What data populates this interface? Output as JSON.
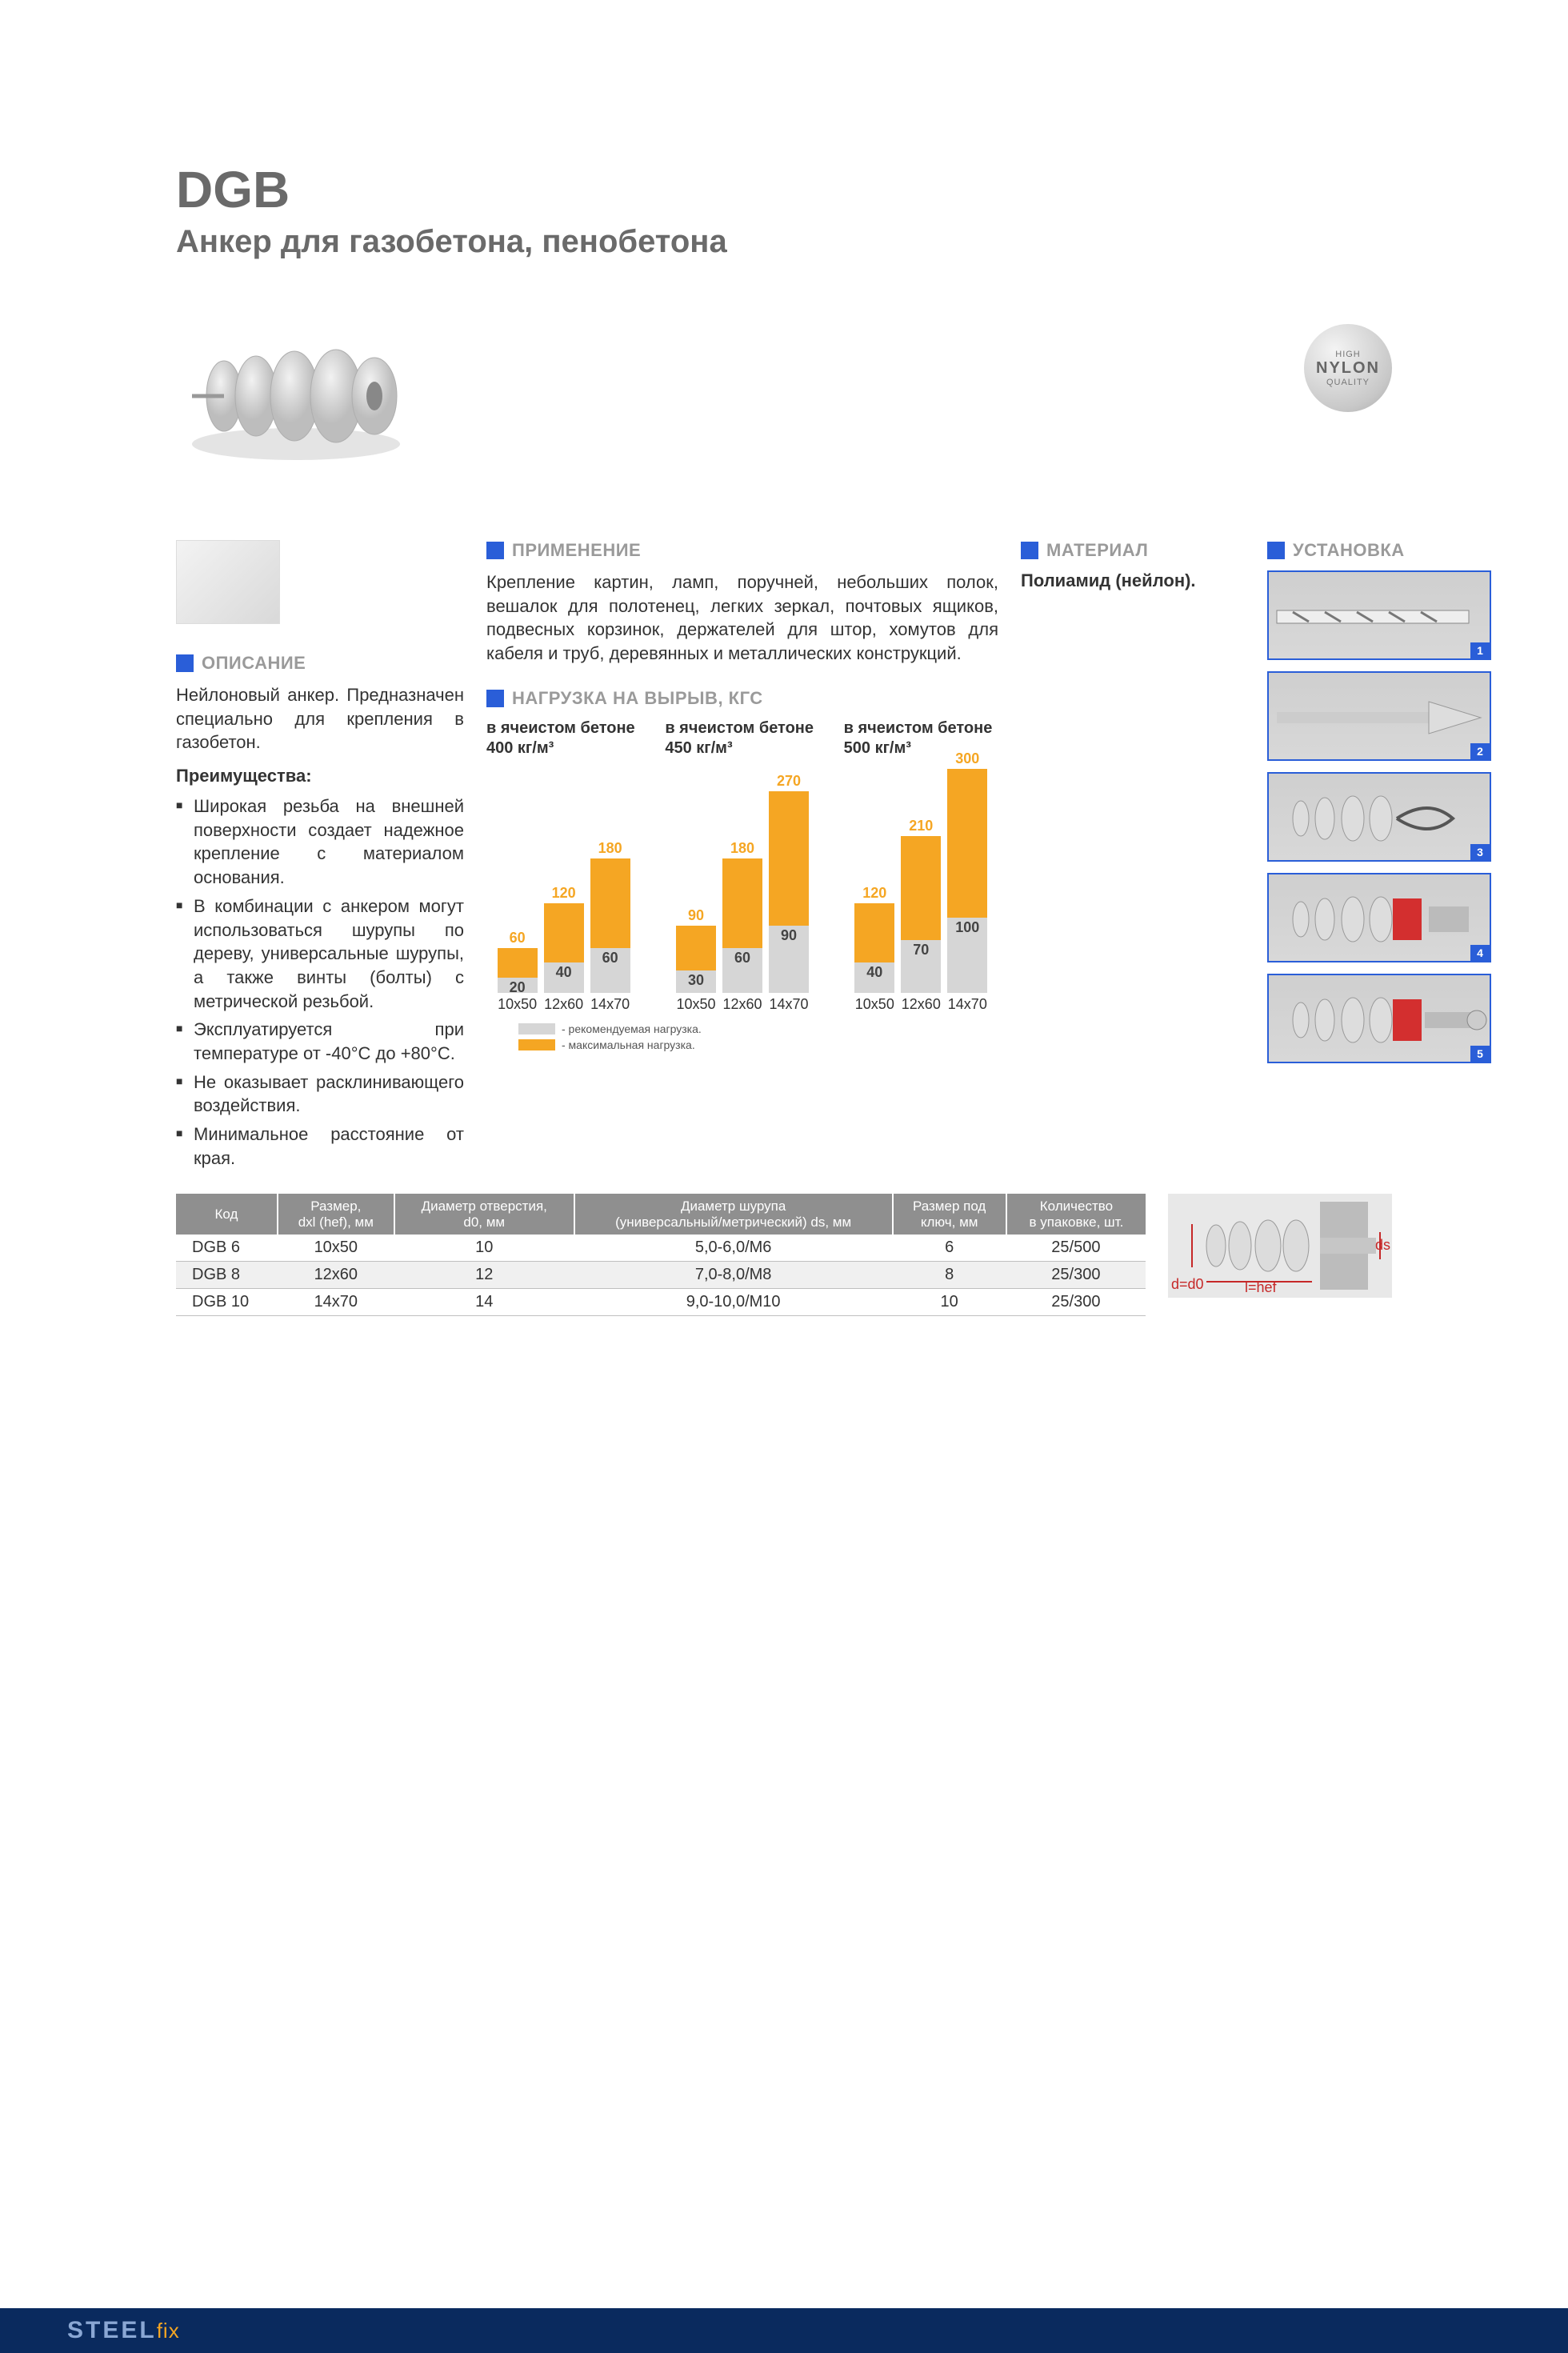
{
  "header": {
    "title": "DGB",
    "subtitle": "Анкер для газобетона, пенобетона"
  },
  "badge": {
    "top": "HIGH",
    "mid": "NYLON",
    "bot": "QUALITY"
  },
  "sections": {
    "desc_title": "ОПИСАНИЕ",
    "app_title": "ПРИМЕНЕНИЕ",
    "load_title": "НАГРУЗКА НА ВЫРЫВ, КГС",
    "mat_title": "МАТЕРИАЛ",
    "install_title": "УСТАНОВКА"
  },
  "description": {
    "intro": "Нейлоновый анкер. Предназначен специально для крепления в газобетон.",
    "adv_title": "Преимущества:",
    "adv": [
      "Широкая резьба на внешней поверхности создает надежное крепление с материалом основания.",
      "В комбинации с анкером могут использоваться шурупы по дереву, универсальные шурупы, а также винты (болты) с метрической резьбой.",
      "Эксплуатируется при температуре от -40°С до +80°С.",
      "Не оказывает расклинивающего воздействия.",
      "Минимальное расстояние от края."
    ]
  },
  "application": "Крепление картин, ламп, поручней, небольших полок, вешалок для полотенец, легких зеркал, почтовых ящиков, подвесных корзинок, держателей для штор, хомутов для кабеля и труб, деревянных и металлических конструкций.",
  "material": "Полиамид (нейлон).",
  "chart": {
    "ylim": 300,
    "colors": {
      "rec": "#d6d6d6",
      "max": "#f5a623"
    },
    "groups": [
      {
        "caption": "в ячеистом бетоне 400 кг/м³",
        "bars": [
          {
            "xl": "10x50",
            "rec": 20,
            "max": 60
          },
          {
            "xl": "12x60",
            "rec": 40,
            "max": 120
          },
          {
            "xl": "14x70",
            "rec": 60,
            "max": 180
          }
        ]
      },
      {
        "caption": "в ячеистом бетоне 450 кг/м³",
        "bars": [
          {
            "xl": "10x50",
            "rec": 30,
            "max": 90
          },
          {
            "xl": "12x60",
            "rec": 60,
            "max": 180
          },
          {
            "xl": "14x70",
            "rec": 90,
            "max": 270
          }
        ]
      },
      {
        "caption": "в ячеистом бетоне 500 кг/м³",
        "bars": [
          {
            "xl": "10x50",
            "rec": 40,
            "max": 120
          },
          {
            "xl": "12x60",
            "rec": 70,
            "max": 210
          },
          {
            "xl": "14x70",
            "rec": 100,
            "max": 300
          }
        ]
      }
    ],
    "legend": {
      "rec": "- рекомендуемая нагрузка.",
      "max": "- максимальная нагрузка."
    }
  },
  "install_steps": [
    1,
    2,
    3,
    4,
    5
  ],
  "table": {
    "headers": [
      "Код",
      "Размер,\ndxl (hef), мм",
      "Диаметр отверстия,\nd0, мм",
      "Диаметр шурупа\n(универсальный/метрический) ds, мм",
      "Размер под\nключ, мм",
      "Количество\nв упаковке, шт."
    ],
    "rows": [
      [
        "DGB 6",
        "10x50",
        "10",
        "5,0-6,0/M6",
        "6",
        "25/500"
      ],
      [
        "DGB 8",
        "12x60",
        "12",
        "7,0-8,0/M8",
        "8",
        "25/300"
      ],
      [
        "DGB 10",
        "14x70",
        "14",
        "9,0-10,0/M10",
        "10",
        "25/300"
      ]
    ]
  },
  "diagram_labels": {
    "d": "d=d0",
    "l": "l=hef",
    "ds": "ds"
  },
  "logo": {
    "a": "STEEL",
    "b": "fix"
  }
}
